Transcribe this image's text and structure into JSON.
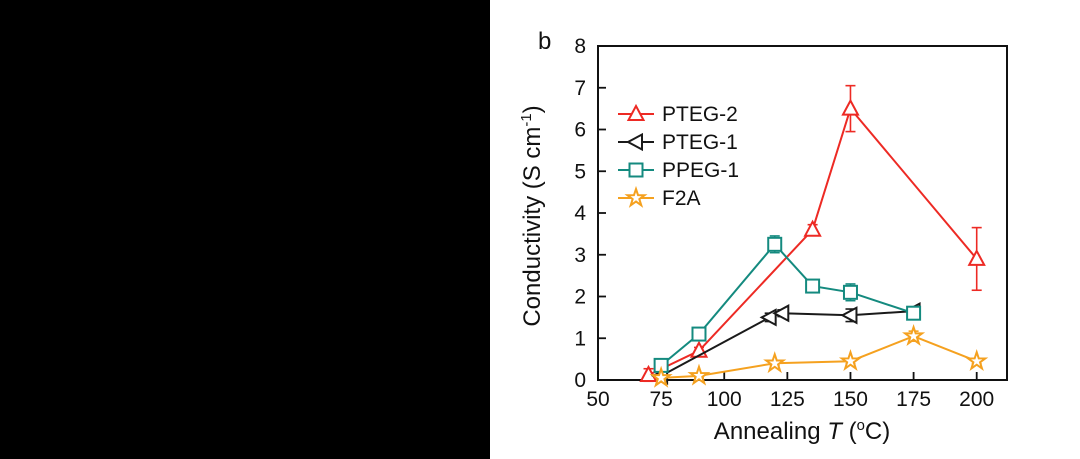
{
  "panel_label": "b",
  "axis": {
    "ylabel_prefix": "Conductivity (S cm",
    "ylabel_sup": "-1",
    "ylabel_suffix": ")",
    "xlabel_prefix": "Annealing ",
    "xlabel_italic": "T",
    "xlabel_open": " (",
    "xlabel_sup": "o",
    "xlabel_close": "C)"
  },
  "chart_data": {
    "type": "line",
    "title": "",
    "xlabel": "Annealing T (°C)",
    "ylabel": "Conductivity (S cm⁻¹)",
    "xlim": [
      50,
      212
    ],
    "ylim": [
      0,
      8
    ],
    "xticks": [
      50,
      75,
      100,
      125,
      150,
      175,
      200
    ],
    "yticks": [
      0,
      1,
      2,
      3,
      4,
      5,
      6,
      7,
      8
    ],
    "grid": false,
    "legend_position": "upper-left-inside",
    "series": [
      {
        "name": "PTEG-2",
        "color": "#ed2a24",
        "marker": "triangle-up",
        "points": [
          {
            "x": 70,
            "y": 0.12,
            "err": 0.15
          },
          {
            "x": 90,
            "y": 0.7,
            "err": 0.08
          },
          {
            "x": 135,
            "y": 3.6,
            "err": 0.12
          },
          {
            "x": 150,
            "y": 6.5,
            "err": 0.55
          },
          {
            "x": 200,
            "y": 2.9,
            "err": 0.75
          }
        ]
      },
      {
        "name": "PTEG-1",
        "color": "#1a1a1a",
        "marker": "triangle-left",
        "points": [
          {
            "x": 75,
            "y": 0.1,
            "err": 0.05
          },
          {
            "x": 118,
            "y": 1.5,
            "err": 0.1
          },
          {
            "x": 123,
            "y": 1.6,
            "err": 0.08
          },
          {
            "x": 150,
            "y": 1.55,
            "err": 0.15
          },
          {
            "x": 175,
            "y": 1.65,
            "err": 0.08
          }
        ]
      },
      {
        "name": "PPEG-1",
        "color": "#148a7f",
        "marker": "square",
        "points": [
          {
            "x": 75,
            "y": 0.35,
            "err": 0.06
          },
          {
            "x": 90,
            "y": 1.1,
            "err": 0.1
          },
          {
            "x": 120,
            "y": 3.25,
            "err": 0.2
          },
          {
            "x": 135,
            "y": 2.25,
            "err": 0.08
          },
          {
            "x": 150,
            "y": 2.1,
            "err": 0.2
          },
          {
            "x": 175,
            "y": 1.6,
            "err": 0.12
          }
        ]
      },
      {
        "name": "F2A",
        "color": "#f5a11f",
        "marker": "star",
        "points": [
          {
            "x": 75,
            "y": 0.05,
            "err": 0.04
          },
          {
            "x": 90,
            "y": 0.1,
            "err": 0.05
          },
          {
            "x": 120,
            "y": 0.4,
            "err": 0.05
          },
          {
            "x": 150,
            "y": 0.45,
            "err": 0.06
          },
          {
            "x": 175,
            "y": 1.05,
            "err": 0.12
          },
          {
            "x": 200,
            "y": 0.45,
            "err": 0.06
          }
        ]
      }
    ]
  }
}
